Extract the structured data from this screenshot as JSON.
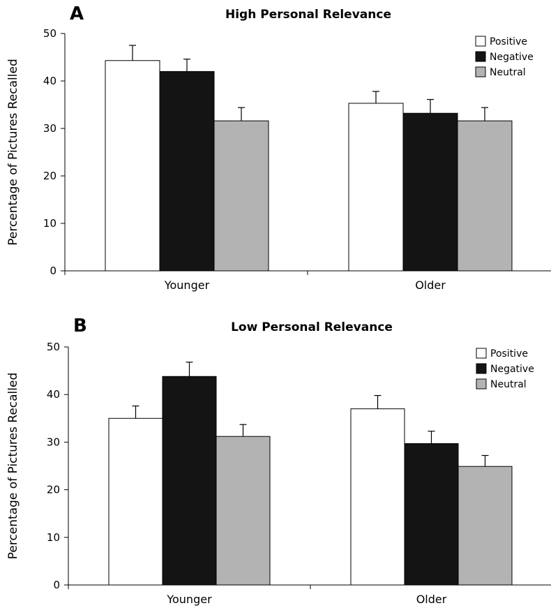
{
  "chart_data": [
    {
      "type": "bar",
      "panel_letter": "A",
      "title": "High Personal Relevance",
      "ylabel": "Percentage of Pictures Recalled",
      "xlabel": "",
      "ylim": [
        0,
        50
      ],
      "yticks": [
        "0",
        "10",
        "20",
        "30",
        "40",
        "50"
      ],
      "categories": [
        "Younger",
        "Older"
      ],
      "legend_position": "top-right",
      "series": [
        {
          "name": "Positive",
          "color": "#ffffff",
          "values": [
            44.3,
            35.3
          ],
          "errors": [
            3.2,
            2.5
          ]
        },
        {
          "name": "Negative",
          "color": "#141414",
          "values": [
            42.0,
            33.2
          ],
          "errors": [
            2.6,
            2.9
          ]
        },
        {
          "name": "Neutral",
          "color": "#b3b3b3",
          "values": [
            31.6,
            31.6
          ],
          "errors": [
            2.8,
            2.8
          ]
        }
      ]
    },
    {
      "type": "bar",
      "panel_letter": "B",
      "title": "Low Personal Relevance",
      "ylabel": "Percentage of Pictures Recalled",
      "xlabel": "",
      "ylim": [
        0,
        50
      ],
      "yticks": [
        "0",
        "10",
        "20",
        "30",
        "40",
        "50"
      ],
      "categories": [
        "Younger",
        "Older"
      ],
      "legend_position": "top-right",
      "series": [
        {
          "name": "Positive",
          "color": "#ffffff",
          "values": [
            35.0,
            37.0
          ],
          "errors": [
            2.6,
            2.8
          ]
        },
        {
          "name": "Negative",
          "color": "#141414",
          "values": [
            43.8,
            29.7
          ],
          "errors": [
            3.0,
            2.6
          ]
        },
        {
          "name": "Neutral",
          "color": "#b3b3b3",
          "values": [
            31.2,
            24.9
          ],
          "errors": [
            2.5,
            2.3
          ]
        }
      ]
    }
  ]
}
